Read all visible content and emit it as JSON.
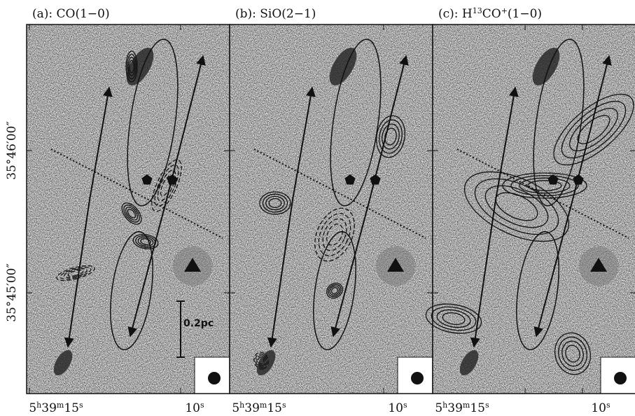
{
  "panels": [
    {
      "title": [
        {
          "text": "(a): CO(1−0)"
        }
      ],
      "ra_labels": [
        [
          {
            "text": "5"
          },
          {
            "text": "h",
            "sup": true
          },
          {
            "text": "39"
          },
          {
            "text": "m",
            "sup": true
          },
          {
            "text": "15"
          },
          {
            "text": "s",
            "sup": true
          }
        ],
        [
          {
            "text": "10"
          },
          {
            "text": "s",
            "sup": true
          }
        ]
      ]
    },
    {
      "title": [
        {
          "text": "(b): SiO(2−1)"
        }
      ],
      "ra_labels": [
        [
          {
            "text": "5"
          },
          {
            "text": "h",
            "sup": true
          },
          {
            "text": "39"
          },
          {
            "text": "m",
            "sup": true
          },
          {
            "text": "15"
          },
          {
            "text": "s",
            "sup": true
          }
        ],
        [
          {
            "text": "10"
          },
          {
            "text": "s",
            "sup": true
          }
        ]
      ]
    },
    {
      "title": [
        {
          "text": "(c): H"
        },
        {
          "text": "13",
          "sup": true
        },
        {
          "text": "CO"
        },
        {
          "text": "+",
          "sup": true
        },
        {
          "text": "(1−0)"
        }
      ],
      "ra_labels": [
        [
          {
            "text": "5"
          },
          {
            "text": "h",
            "sup": true
          },
          {
            "text": "39"
          },
          {
            "text": "m",
            "sup": true
          },
          {
            "text": "15"
          },
          {
            "text": "s",
            "sup": true
          }
        ],
        [
          {
            "text": "10"
          },
          {
            "text": "s",
            "sup": true
          }
        ]
      ]
    }
  ],
  "dec_labels": [
    "35°46′00″",
    "35°45′00″"
  ],
  "scale_bar": "0.2pc"
}
